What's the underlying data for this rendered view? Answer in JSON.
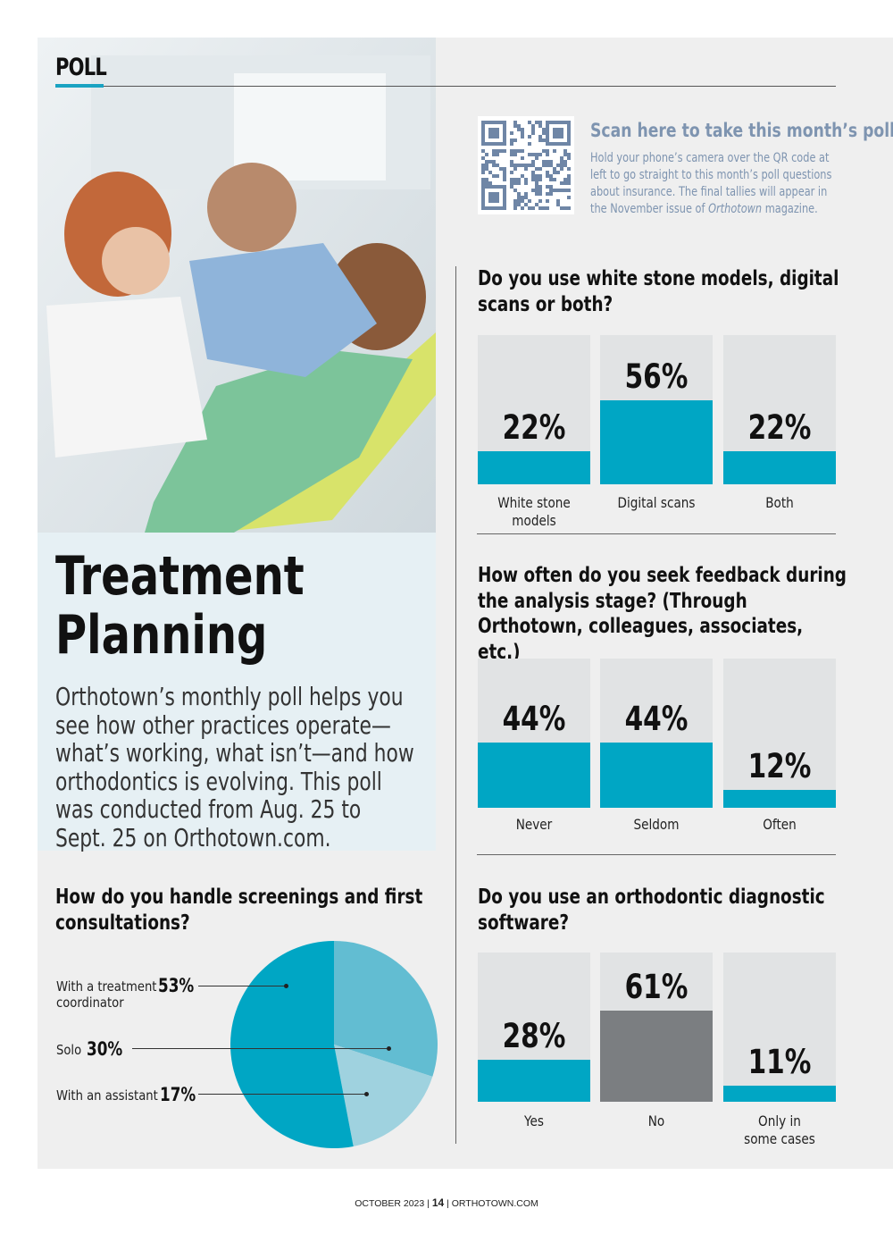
{
  "section_label": "POLL",
  "colors": {
    "teal": "#00a6c4",
    "gray_bar": "#7b7e81",
    "track": "#e1e3e4",
    "pie_dark": "#00a6c4",
    "pie_mid": "#62bdd2",
    "pie_light": "#9fd2df",
    "qr": "#6f86a6"
  },
  "photo": {
    "icon": "dental-exam-photo"
  },
  "intro": {
    "title_line1": "Treatment",
    "title_line2": "Planning",
    "body": "Orthotown’s monthly poll helps you see how other practices operate—what’s working, what isn’t—and how orthodontics is evolving. This poll was conducted from Aug. 25 to Sept. 25 on Orthotown.com."
  },
  "scan": {
    "title": "Scan here to take this month’s poll!",
    "text_before": "Hold your phone’s camera over the QR code at left to go straight to this month’s poll questions about insurance. The final tallies will appear in the November issue of ",
    "text_em": "Orthotown",
    "text_after": " magazine."
  },
  "chart_data": [
    {
      "type": "bar",
      "title": "Do you use white stone models, digital scans or both?",
      "categories": [
        "White stone models",
        "Digital scans",
        "Both"
      ],
      "values": [
        22,
        56,
        22
      ],
      "value_labels": [
        "22%",
        "56%",
        "22%"
      ],
      "ylim": [
        0,
        100
      ]
    },
    {
      "type": "bar",
      "title": "How often do you seek feedback during the analysis stage? (Through Orthotown, colleagues, associates, etc.)",
      "categories": [
        "Never",
        "Seldom",
        "Often"
      ],
      "values": [
        44,
        44,
        12
      ],
      "value_labels": [
        "44%",
        "44%",
        "12%"
      ],
      "ylim": [
        0,
        100
      ]
    },
    {
      "type": "bar",
      "title": "Do you use an orthodontic diagnostic software?",
      "categories": [
        "Yes",
        "No",
        "Only in some cases"
      ],
      "values": [
        28,
        61,
        11
      ],
      "value_labels": [
        "28%",
        "61%",
        "11%"
      ],
      "ylim": [
        0,
        100
      ]
    },
    {
      "type": "pie",
      "title": "How do you handle screenings and first consultations?",
      "labels": [
        "With a treatment coordinator",
        "Solo",
        "With an assistant"
      ],
      "values": [
        53,
        30,
        17
      ],
      "value_labels": [
        "53%",
        "30%",
        "17%"
      ]
    }
  ],
  "pie_text": {
    "coordinator_line1": "With a treatment",
    "coordinator_line2": "coordinator",
    "solo": "Solo",
    "assistant": "With an assistant"
  },
  "footer": {
    "date": "OCTOBER 2023",
    "page": "14",
    "site": "ORTHOTOWN.COM"
  }
}
